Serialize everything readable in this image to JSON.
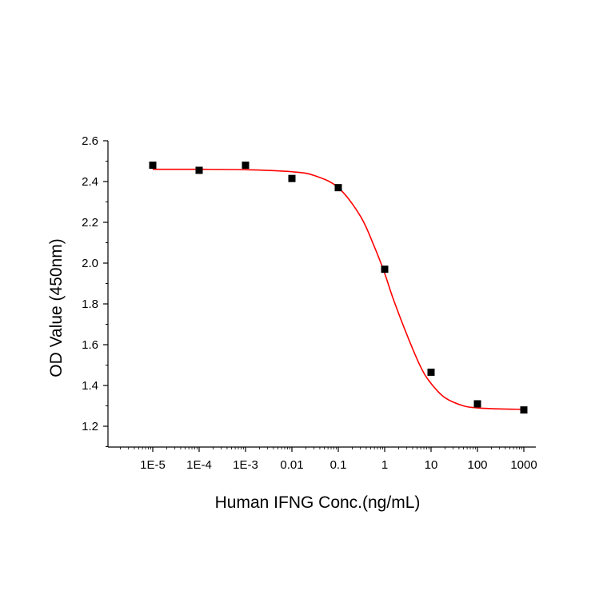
{
  "chart_data": {
    "type": "scatter",
    "title": "",
    "xlabel": "Human IFNG Conc.(ng/mL)",
    "ylabel": "OD Value (450nm)",
    "x_scale": "log",
    "xlim": [
      3e-06,
      1200
    ],
    "ylim": [
      1.1,
      2.6
    ],
    "x_ticks": [
      1e-05,
      0.0001,
      0.001,
      0.01,
      0.1,
      1,
      10,
      100,
      1000
    ],
    "x_tick_labels": [
      "1E-5",
      "1E-4",
      "1E-3",
      "0.01",
      "0.1",
      "1",
      "10",
      "100",
      "1000"
    ],
    "y_ticks": [
      1.2,
      1.4,
      1.6,
      1.8,
      2.0,
      2.2,
      2.4,
      2.6
    ],
    "y_tick_labels": [
      "1.2",
      "1.4",
      "1.6",
      "1.8",
      "2.0",
      "2.2",
      "2.4",
      "2.6"
    ],
    "grid": false,
    "series": [
      {
        "kind": "points",
        "marker": "square",
        "color": "#000000",
        "x": [
          1e-05,
          0.0001,
          0.001,
          0.01,
          0.1,
          1,
          10,
          100,
          1000
        ],
        "y": [
          2.48,
          2.455,
          2.48,
          2.415,
          2.37,
          1.97,
          1.465,
          1.31,
          1.28
        ]
      },
      {
        "kind": "fit-curve",
        "color": "#ff0000",
        "x": [
          1e-05,
          0.0001,
          0.001,
          0.01,
          0.03,
          0.1,
          0.3,
          0.6,
          1,
          1.5,
          3,
          6,
          10,
          20,
          50,
          100,
          300,
          1000
        ],
        "y": [
          2.46,
          2.46,
          2.458,
          2.448,
          2.43,
          2.37,
          2.23,
          2.08,
          1.95,
          1.83,
          1.65,
          1.49,
          1.41,
          1.34,
          1.3,
          1.29,
          1.285,
          1.283
        ]
      }
    ]
  }
}
